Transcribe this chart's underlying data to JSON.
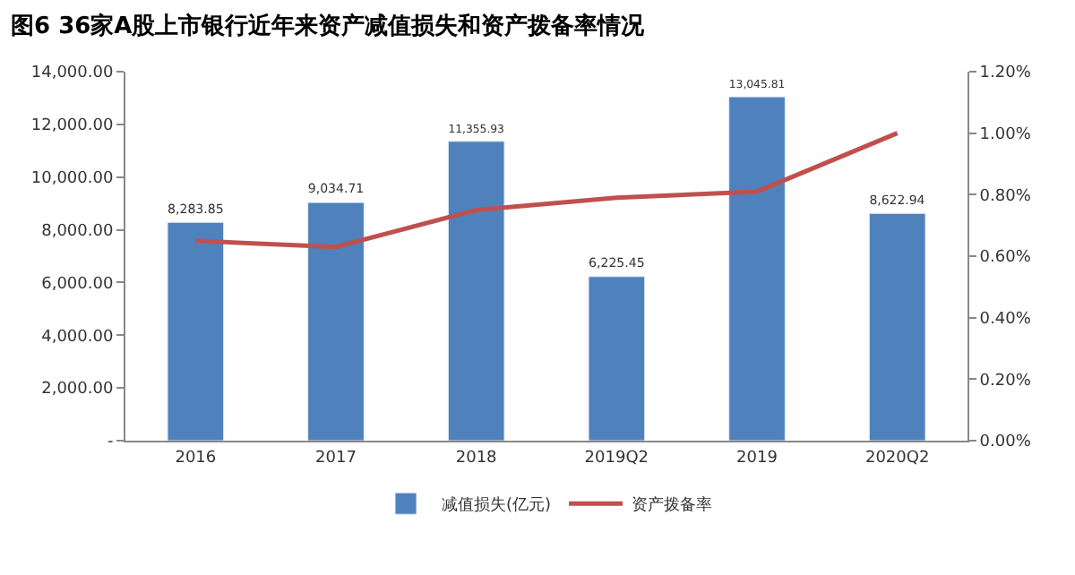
{
  "chart_data": {
    "type": "bar",
    "title": "图6 36家A股上市银行近年来资产减值损失和资产拨备率情况",
    "categories": [
      "2016",
      "2017",
      "2018",
      "2019Q2",
      "2019",
      "2020Q2"
    ],
    "series": [
      {
        "name": "减值损失(亿元)",
        "color": "#4f81bd",
        "values": [
          8283.85,
          9034.71,
          11355.93,
          6225.45,
          13045.81,
          8622.94
        ],
        "value_labels": [
          "8,283.85",
          "9,034.71",
          "11,355.93",
          "6,225.45",
          "13,045.81",
          "8,622.94"
        ]
      },
      {
        "name": "资产拨备率",
        "type": "line",
        "axis": "y2",
        "color": "#c0504d",
        "values": [
          0.65,
          0.63,
          0.75,
          0.79,
          0.81,
          1.0
        ]
      }
    ],
    "ylim": [
      0,
      14000
    ],
    "yticks": [
      {
        "value": 0,
        "label": "-"
      },
      {
        "value": 2000,
        "label": "2,000.00"
      },
      {
        "value": 4000,
        "label": "4,000.00"
      },
      {
        "value": 6000,
        "label": "6,000.00"
      },
      {
        "value": 8000,
        "label": "8,000.00"
      },
      {
        "value": 10000,
        "label": "10,000.00"
      },
      {
        "value": 12000,
        "label": "12,000.00"
      },
      {
        "value": 14000,
        "label": "14,000.00"
      }
    ],
    "y2lim": [
      0,
      1.2
    ],
    "y2ticks": [
      {
        "value": 0,
        "label": "0.00%"
      },
      {
        "value": 0.2,
        "label": "0.20%"
      },
      {
        "value": 0.4,
        "label": "0.40%"
      },
      {
        "value": 0.6,
        "label": "0.60%"
      },
      {
        "value": 0.8,
        "label": "0.80%"
      },
      {
        "value": 1.0,
        "label": "1.00%"
      },
      {
        "value": 1.2,
        "label": "1.20%"
      }
    ],
    "legend": "bottom",
    "marker": "none"
  }
}
